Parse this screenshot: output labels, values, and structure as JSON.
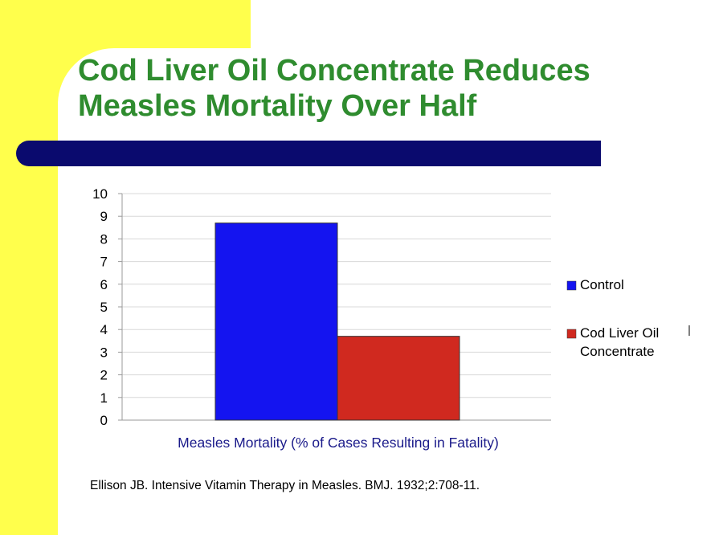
{
  "slide": {
    "title_line1": "Cod Liver Oil Concentrate Reduces",
    "title_line2": "Measles Mortality Over Half",
    "citation": "Ellison JB.  Intensive Vitamin Therapy in Measles.  BMJ. 1932;2:708-11.",
    "colors": {
      "title": "#2f8c2f",
      "accent_bar": "#0a0a6e",
      "side_band": "#ffff4c"
    }
  },
  "chart_data": {
    "type": "bar",
    "categories": [
      "Measles Mortality (% of Cases Resulting in Fatality)"
    ],
    "xlabel": "Measles Mortality (% of Cases Resulting in Fatality)",
    "ylabel": "",
    "ylim": [
      0,
      10
    ],
    "yticks": [
      0,
      1,
      2,
      3,
      4,
      5,
      6,
      7,
      8,
      9,
      10
    ],
    "grid": true,
    "legend_position": "right",
    "series": [
      {
        "name": "Control",
        "values": [
          8.7
        ],
        "color": "#1414f0"
      },
      {
        "name": "Cod Liver Oil Concentrate",
        "legend_lines": [
          "Cod Liver Oil",
          "Concentrate"
        ],
        "values": [
          3.7
        ],
        "color": "#d0291f"
      }
    ]
  }
}
